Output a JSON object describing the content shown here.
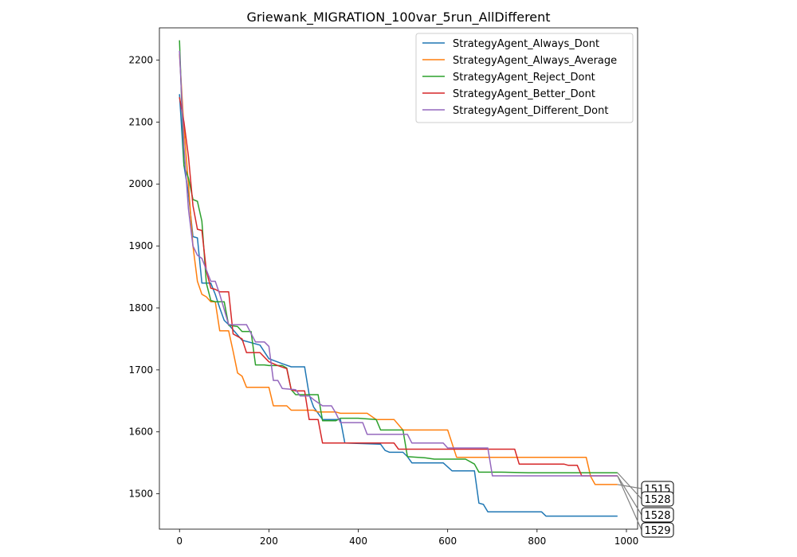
{
  "chart_data": {
    "type": "line",
    "title": "Griewank_MIGRATION_100var_5run_AllDifferent",
    "xlabel": "",
    "ylabel": "",
    "xlim": [
      -45,
      1025
    ],
    "ylim": [
      1443,
      2252
    ],
    "xticks": [
      0,
      200,
      400,
      600,
      800,
      1000
    ],
    "yticks": [
      1500,
      1600,
      1700,
      1800,
      1900,
      2000,
      2100,
      2200
    ],
    "grid": false,
    "legend_position": "top-right",
    "series": [
      {
        "name": "StrategyAgent_Always_Dont",
        "color": "#1f77b4",
        "points": [
          [
            0,
            2145
          ],
          [
            10,
            2030
          ],
          [
            20,
            1985
          ],
          [
            30,
            1915
          ],
          [
            40,
            1913
          ],
          [
            50,
            1840
          ],
          [
            70,
            1840
          ],
          [
            80,
            1822
          ],
          [
            90,
            1800
          ],
          [
            100,
            1780
          ],
          [
            110,
            1773
          ],
          [
            140,
            1748
          ],
          [
            180,
            1740
          ],
          [
            200,
            1718
          ],
          [
            230,
            1710
          ],
          [
            250,
            1705
          ],
          [
            280,
            1705
          ],
          [
            290,
            1660
          ],
          [
            300,
            1640
          ],
          [
            320,
            1620
          ],
          [
            360,
            1620
          ],
          [
            370,
            1582
          ],
          [
            450,
            1580
          ],
          [
            460,
            1570
          ],
          [
            470,
            1567
          ],
          [
            500,
            1567
          ],
          [
            510,
            1560
          ],
          [
            520,
            1550
          ],
          [
            590,
            1550
          ],
          [
            610,
            1537
          ],
          [
            660,
            1537
          ],
          [
            670,
            1485
          ],
          [
            680,
            1483
          ],
          [
            690,
            1471
          ],
          [
            810,
            1471
          ],
          [
            820,
            1464
          ],
          [
            980,
            1464
          ]
        ]
      },
      {
        "name": "StrategyAgent_Always_Average",
        "color": "#ff7f0e",
        "points": [
          [
            0,
            2210
          ],
          [
            10,
            2090
          ],
          [
            20,
            2000
          ],
          [
            30,
            1900
          ],
          [
            40,
            1843
          ],
          [
            50,
            1822
          ],
          [
            60,
            1818
          ],
          [
            70,
            1810
          ],
          [
            80,
            1810
          ],
          [
            90,
            1763
          ],
          [
            110,
            1763
          ],
          [
            120,
            1730
          ],
          [
            130,
            1695
          ],
          [
            140,
            1690
          ],
          [
            150,
            1672
          ],
          [
            200,
            1672
          ],
          [
            210,
            1642
          ],
          [
            240,
            1642
          ],
          [
            250,
            1635
          ],
          [
            300,
            1635
          ],
          [
            310,
            1632
          ],
          [
            350,
            1632
          ],
          [
            360,
            1630
          ],
          [
            420,
            1630
          ],
          [
            440,
            1620
          ],
          [
            480,
            1620
          ],
          [
            500,
            1603
          ],
          [
            600,
            1603
          ],
          [
            620,
            1559
          ],
          [
            910,
            1559
          ],
          [
            920,
            1528
          ],
          [
            930,
            1515
          ],
          [
            980,
            1515
          ]
        ]
      },
      {
        "name": "StrategyAgent_Reject_Dont",
        "color": "#2ca02c",
        "points": [
          [
            0,
            2232
          ],
          [
            10,
            2030
          ],
          [
            20,
            2010
          ],
          [
            30,
            1975
          ],
          [
            40,
            1972
          ],
          [
            50,
            1940
          ],
          [
            60,
            1840
          ],
          [
            70,
            1812
          ],
          [
            80,
            1810
          ],
          [
            100,
            1810
          ],
          [
            110,
            1772
          ],
          [
            130,
            1770
          ],
          [
            140,
            1762
          ],
          [
            160,
            1762
          ],
          [
            170,
            1708
          ],
          [
            190,
            1708
          ],
          [
            200,
            1707
          ],
          [
            230,
            1707
          ],
          [
            240,
            1703
          ],
          [
            250,
            1668
          ],
          [
            260,
            1660
          ],
          [
            310,
            1660
          ],
          [
            320,
            1618
          ],
          [
            350,
            1618
          ],
          [
            360,
            1622
          ],
          [
            400,
            1622
          ],
          [
            440,
            1620
          ],
          [
            450,
            1603
          ],
          [
            500,
            1603
          ],
          [
            510,
            1560
          ],
          [
            550,
            1558
          ],
          [
            570,
            1556
          ],
          [
            640,
            1556
          ],
          [
            660,
            1548
          ],
          [
            670,
            1535
          ],
          [
            720,
            1535
          ],
          [
            780,
            1534
          ],
          [
            980,
            1534
          ]
        ]
      },
      {
        "name": "StrategyAgent_Better_Dont",
        "color": "#d62728",
        "points": [
          [
            0,
            2140
          ],
          [
            10,
            2100
          ],
          [
            20,
            2045
          ],
          [
            30,
            1965
          ],
          [
            40,
            1927
          ],
          [
            50,
            1925
          ],
          [
            60,
            1860
          ],
          [
            70,
            1832
          ],
          [
            80,
            1830
          ],
          [
            90,
            1826
          ],
          [
            110,
            1826
          ],
          [
            120,
            1758
          ],
          [
            140,
            1750
          ],
          [
            150,
            1728
          ],
          [
            180,
            1728
          ],
          [
            200,
            1713
          ],
          [
            220,
            1707
          ],
          [
            240,
            1702
          ],
          [
            250,
            1668
          ],
          [
            260,
            1666
          ],
          [
            280,
            1666
          ],
          [
            290,
            1620
          ],
          [
            310,
            1620
          ],
          [
            320,
            1582
          ],
          [
            380,
            1582
          ],
          [
            480,
            1582
          ],
          [
            490,
            1572
          ],
          [
            520,
            1572
          ],
          [
            540,
            1572
          ],
          [
            750,
            1572
          ],
          [
            760,
            1548
          ],
          [
            860,
            1548
          ],
          [
            870,
            1546
          ],
          [
            890,
            1546
          ],
          [
            900,
            1529
          ],
          [
            980,
            1529
          ]
        ]
      },
      {
        "name": "StrategyAgent_Different_Dont",
        "color": "#9467bd",
        "points": [
          [
            0,
            2215
          ],
          [
            10,
            2060
          ],
          [
            20,
            1960
          ],
          [
            30,
            1900
          ],
          [
            40,
            1885
          ],
          [
            50,
            1880
          ],
          [
            70,
            1843
          ],
          [
            80,
            1843
          ],
          [
            90,
            1822
          ],
          [
            110,
            1773
          ],
          [
            150,
            1773
          ],
          [
            170,
            1745
          ],
          [
            190,
            1745
          ],
          [
            200,
            1738
          ],
          [
            210,
            1683
          ],
          [
            220,
            1683
          ],
          [
            230,
            1670
          ],
          [
            260,
            1668
          ],
          [
            270,
            1658
          ],
          [
            290,
            1658
          ],
          [
            300,
            1652
          ],
          [
            320,
            1642
          ],
          [
            340,
            1642
          ],
          [
            350,
            1630
          ],
          [
            360,
            1615
          ],
          [
            410,
            1615
          ],
          [
            420,
            1596
          ],
          [
            510,
            1596
          ],
          [
            520,
            1582
          ],
          [
            590,
            1582
          ],
          [
            600,
            1574
          ],
          [
            690,
            1574
          ],
          [
            700,
            1529
          ],
          [
            980,
            1529
          ]
        ]
      }
    ],
    "annotations": [
      {
        "text": "1515",
        "series": 1
      },
      {
        "text": "1528",
        "series": 2
      },
      {
        "text": "1528",
        "series": 3
      },
      {
        "text": "1529",
        "series": 4
      }
    ]
  }
}
